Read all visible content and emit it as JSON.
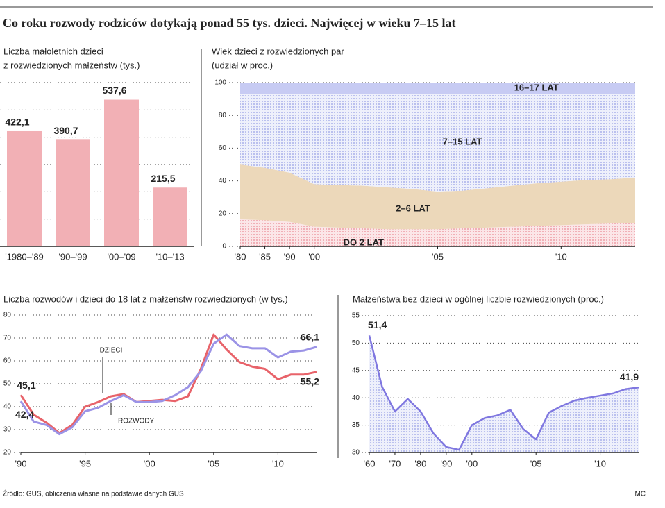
{
  "title": "Co roku rozwody rodziców dotykają ponad 55 tys. dzieci. Najwięcej w wieku 7–15 lat",
  "source": "Źródło: GUS, obliczenia własne na podstawie danych GUS",
  "credit": "MC",
  "chart_data": [
    {
      "type": "bar",
      "title": [
        "Liczba małoletnich dzieci",
        "z rozwiedzionych małżeństw (tys.)"
      ],
      "categories": [
        "'1980–'89",
        "'90–'99",
        "'00–'09",
        "'10–'13"
      ],
      "values": [
        422.1,
        390.7,
        537.6,
        215.5
      ],
      "value_labels": [
        "422,1",
        "390,7",
        "537,6",
        "215,5"
      ],
      "color": "#f2b0b5",
      "ylim": [
        0,
        600
      ],
      "gridlines": [
        100,
        200,
        300,
        400,
        500,
        600
      ],
      "grid": true
    },
    {
      "type": "area",
      "stacked": true,
      "title": [
        "Wiek dzieci z rozwiedzionych par",
        "(udział w proc.)"
      ],
      "categories": [
        "'80",
        "'85",
        "'90",
        "'00",
        null,
        null,
        null,
        null,
        "'05",
        null,
        null,
        null,
        null,
        "'10",
        null,
        null,
        null
      ],
      "series": [
        {
          "name": "DO 2 LAT",
          "color": "#f4b9bf",
          "values": [
            16.5,
            16,
            15,
            12,
            11.5,
            11,
            10.5,
            10.5,
            10.5,
            11,
            11.5,
            12,
            12.5,
            13,
            13.5,
            14,
            14
          ]
        },
        {
          "name": "2–6 LAT",
          "color": "#ecd7b8",
          "values": [
            33.5,
            32,
            30,
            26,
            26,
            26,
            25.5,
            24.5,
            23,
            23,
            24,
            25,
            26,
            26.5,
            27,
            27,
            28
          ]
        },
        {
          "name": "7–15 LAT",
          "color": "#c9d0f2",
          "values": [
            43,
            45,
            48,
            55,
            55.5,
            56,
            57,
            58,
            59.5,
            59,
            57.5,
            56,
            54.5,
            53.5,
            52.5,
            52,
            51
          ]
        },
        {
          "name": "16–17 LAT",
          "color": "#bfc3f0",
          "values": [
            7,
            7,
            7,
            7,
            7,
            7,
            7,
            7,
            7,
            7,
            7,
            7,
            7,
            7,
            7,
            7,
            7
          ]
        }
      ],
      "ylim": [
        0,
        100
      ],
      "yticks": [
        0,
        20,
        40,
        60,
        80,
        100
      ],
      "grid": true
    },
    {
      "type": "line",
      "title": [
        "Liczba rozwodów i dzieci do 18 lat z małżeństw rozwiedzionych (w tys.)"
      ],
      "x": [
        1990,
        1991,
        1992,
        1993,
        1994,
        1995,
        1996,
        1997,
        1998,
        1999,
        2000,
        2001,
        2002,
        2003,
        2004,
        2005,
        2006,
        2007,
        2008,
        2009,
        2010,
        2011,
        2012,
        2013
      ],
      "series": [
        {
          "name": "ROZWODY",
          "color": "#e8636a",
          "values": [
            45.1,
            36.5,
            33,
            28.5,
            32,
            40,
            42,
            44.5,
            45.5,
            42,
            42.5,
            43,
            42.5,
            44.5,
            56.5,
            71.5,
            65,
            59.5,
            57.5,
            56.5,
            52,
            54,
            54,
            55.2
          ],
          "value_labels": [
            "45,1",
            null,
            null,
            null,
            null,
            null,
            null,
            null,
            null,
            null,
            null,
            null,
            null,
            null,
            null,
            null,
            null,
            null,
            null,
            null,
            null,
            null,
            null,
            "55,2"
          ]
        },
        {
          "name": "DZIECI",
          "color": "#9b93e6",
          "values": [
            42.4,
            33.5,
            32,
            28,
            31,
            38,
            39.5,
            42.5,
            45,
            42,
            42,
            42.5,
            45,
            48.5,
            55.5,
            67.5,
            71.5,
            66.5,
            65.5,
            65.5,
            61.5,
            64,
            64.5,
            66.1
          ],
          "value_labels": [
            "42,4",
            null,
            null,
            null,
            null,
            null,
            null,
            null,
            null,
            null,
            null,
            null,
            null,
            null,
            null,
            null,
            null,
            null,
            null,
            null,
            null,
            null,
            null,
            "66,1"
          ]
        }
      ],
      "xlim": [
        1990,
        2013
      ],
      "xticks": [
        {
          "value": 1990,
          "label": "'90"
        },
        {
          "value": 1995,
          "label": "'95"
        },
        {
          "value": 2000,
          "label": "'00"
        },
        {
          "value": 2005,
          "label": "'05"
        },
        {
          "value": 2010,
          "label": "'10"
        }
      ],
      "ylim": [
        20,
        80
      ],
      "yticks": [
        20,
        30,
        40,
        50,
        60,
        70,
        80
      ],
      "grid": true
    },
    {
      "type": "area",
      "title": [
        "Małżeństwa bez dzieci w ogólnej liczbie rozwiedzionych (proc.)"
      ],
      "categories": [
        "'60",
        null,
        "'70",
        null,
        "'80",
        null,
        "'90",
        null,
        "'00",
        null,
        null,
        null,
        null,
        "'05",
        null,
        null,
        null,
        null,
        "'10",
        null,
        null,
        null
      ],
      "values": [
        51.4,
        42,
        37.5,
        39.8,
        37.5,
        33.5,
        31,
        30.5,
        35,
        36.3,
        36.8,
        37.8,
        34.3,
        32.4,
        37.3,
        38.5,
        39.5,
        40,
        40.4,
        40.8,
        41.6,
        41.9
      ],
      "value_labels": [
        "51,4",
        null,
        null,
        null,
        null,
        null,
        null,
        null,
        null,
        null,
        null,
        null,
        null,
        null,
        null,
        null,
        null,
        null,
        null,
        null,
        null,
        "41,9"
      ],
      "color": "#7f77e0",
      "fill": "#c9ccf3",
      "ylim": [
        30,
        55
      ],
      "yticks": [
        30,
        35,
        40,
        45,
        50,
        55
      ],
      "grid": true
    }
  ]
}
